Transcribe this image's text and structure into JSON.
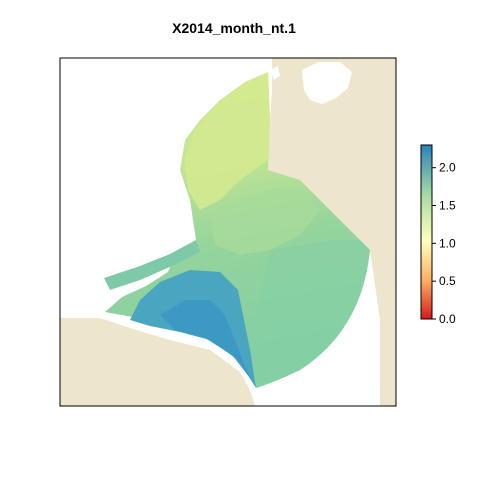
{
  "title": "X2014_month_nt.1",
  "legend": {
    "ticks": [
      {
        "value": 2.0,
        "label": "2.0"
      },
      {
        "value": 1.5,
        "label": "1.5"
      },
      {
        "value": 1.0,
        "label": "1.0"
      },
      {
        "value": 0.5,
        "label": "0.5"
      },
      {
        "value": 0.0,
        "label": "0.0"
      }
    ],
    "range": [
      0.0,
      2.3
    ],
    "palette": [
      "#d7191c",
      "#fdae61",
      "#ffffbf",
      "#abdda4",
      "#2b83ba"
    ]
  },
  "colors": {
    "land": "#ede6cc",
    "water_north": "#d4ea8e",
    "water_mid": "#a9dc9a",
    "water_south": "#84cfa3",
    "water_deep": "#3f9ec2"
  }
}
